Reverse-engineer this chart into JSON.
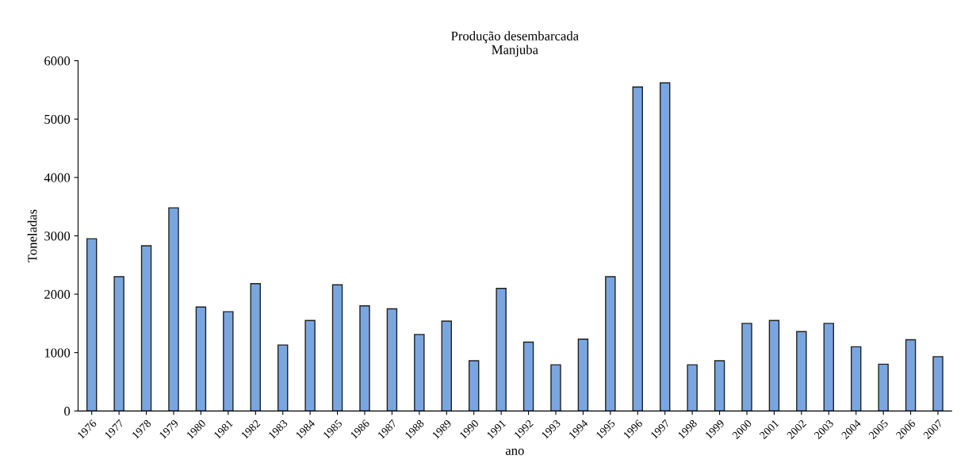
{
  "chart_data": {
    "type": "bar",
    "title": "Produção desembarcada\nManjuba",
    "xlabel": "ano",
    "ylabel": "Toneladas",
    "categories": [
      "1976",
      "1977",
      "1978",
      "1979",
      "1980",
      "1981",
      "1982",
      "1983",
      "1984",
      "1985",
      "1986",
      "1987",
      "1988",
      "1989",
      "1990",
      "1991",
      "1992",
      "1993",
      "1994",
      "1995",
      "1996",
      "1997",
      "1998",
      "1999",
      "2000",
      "2001",
      "2002",
      "2003",
      "2004",
      "2005",
      "2006",
      "2007"
    ],
    "values": [
      2950,
      2300,
      2830,
      3480,
      1780,
      1700,
      2180,
      1130,
      1550,
      2160,
      1800,
      1750,
      1310,
      1540,
      860,
      2100,
      1180,
      790,
      1230,
      2300,
      5550,
      5620,
      790,
      860,
      1500,
      1550,
      1360,
      1500,
      1100,
      800,
      1220,
      930
    ],
    "color": "#7aa6e0",
    "ylim": [
      0,
      6000
    ],
    "yticks": [
      0,
      1000,
      2000,
      3000,
      4000,
      5000,
      6000
    ],
    "grid": false,
    "legend": false
  }
}
